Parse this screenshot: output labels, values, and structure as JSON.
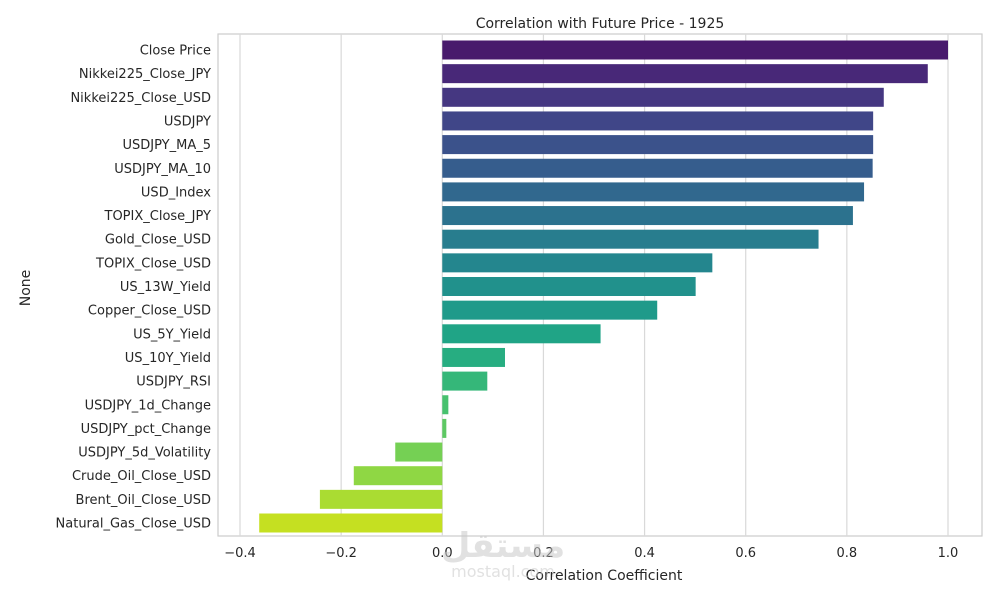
{
  "chart_data": {
    "type": "bar",
    "orientation": "horizontal",
    "title": "Correlation with Future Price - 1925",
    "xlabel": "Correlation Coefficient",
    "ylabel": "None",
    "xlim": [
      -0.45,
      1.07
    ],
    "xticks": [
      -0.4,
      -0.2,
      0.0,
      0.2,
      0.4,
      0.6,
      0.8,
      1.0
    ],
    "xtick_labels": [
      "−0.4",
      "−0.2",
      "0.0",
      "0.2",
      "0.4",
      "0.6",
      "0.8",
      "1.0"
    ],
    "grid": "vertical",
    "palette": "viridis",
    "categories": [
      "Close Price",
      "Nikkei225_Close_JPY",
      "Nikkei225_Close_USD",
      "USDJPY",
      "USDJPY_MA_5",
      "USDJPY_MA_10",
      "USD_Index",
      "TOPIX_Close_JPY",
      "Gold_Close_USD",
      "TOPIX_Close_USD",
      "US_13W_Yield",
      "Copper_Close_USD",
      "US_5Y_Yield",
      "US_10Y_Yield",
      "USDJPY_RSI",
      "USDJPY_1d_Change",
      "USDJPY_pct_Change",
      "USDJPY_5d_Volatility",
      "Crude_Oil_Close_USD",
      "Brent_Oil_Close_USD",
      "Natural_Gas_Close_USD"
    ],
    "values": [
      1.0,
      0.96,
      0.873,
      0.852,
      0.852,
      0.851,
      0.834,
      0.812,
      0.744,
      0.534,
      0.501,
      0.425,
      0.313,
      0.124,
      0.089,
      0.012,
      0.008,
      -0.093,
      -0.175,
      -0.242,
      -0.362
    ],
    "colors": [
      "#481a6c",
      "#482878",
      "#453781",
      "#404688",
      "#3b528b",
      "#365d8d",
      "#31688e",
      "#2c728e",
      "#287d8e",
      "#24868e",
      "#21918c",
      "#1f9a8a",
      "#20a486",
      "#27ad81",
      "#35b779",
      "#47c16e",
      "#5dc863",
      "#75d054",
      "#8fd744",
      "#aadc32",
      "#c5e021"
    ]
  },
  "watermark": {
    "arabic": "مستقل",
    "latin": "mostaql.com"
  }
}
